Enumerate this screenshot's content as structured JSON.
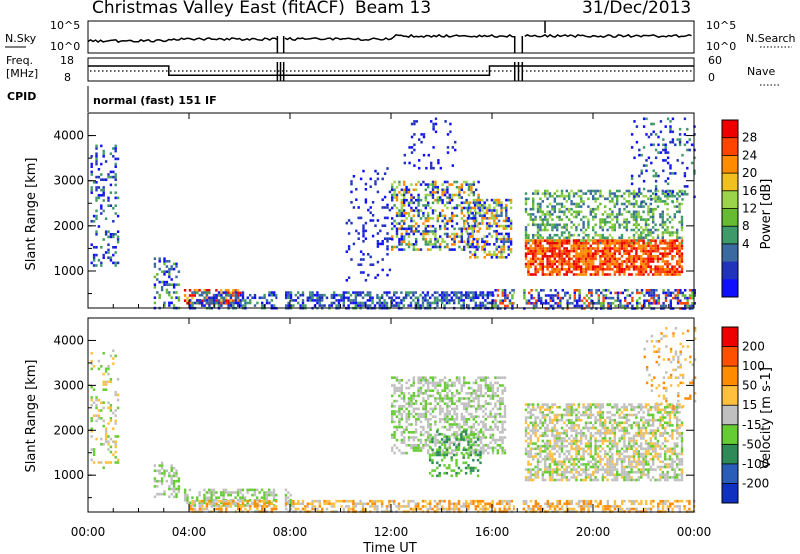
{
  "chart_data": {
    "type": "heatmap",
    "header": {
      "title": "Christmas Valley East (fitACF)",
      "beam": "Beam 13",
      "date": "31/Dec/2013",
      "cpid_label": "CPID",
      "cpid_text": "normal (fast) 151 IF"
    },
    "top_panels": {
      "nsky": {
        "label": "N.Sky",
        "right_label": "N.Search",
        "left_ticks": [
          "10^5",
          "10^0"
        ],
        "right_ticks": [
          "10^5",
          "10^0"
        ]
      },
      "freq": {
        "label_lines": [
          "Freq.",
          "[MHz]"
        ],
        "right_label": "Nave",
        "left_ticks": [
          "18",
          "8"
        ],
        "right_ticks": [
          "60",
          "0"
        ],
        "freq_steps": [
          {
            "t": 0.0,
            "f": 14.5
          },
          {
            "t": 3.2,
            "f": 10.5
          },
          {
            "t": 15.9,
            "f": 14.5
          },
          {
            "t": 24.0,
            "f": 14.5
          }
        ]
      }
    },
    "x_axis": {
      "label": "Time UT",
      "range_hours": [
        0,
        24
      ],
      "tick_labels": [
        "00:00",
        "04:00",
        "08:00",
        "12:00",
        "16:00",
        "20:00",
        "00:00"
      ]
    },
    "y_axis": {
      "label": "Slant Range [km]",
      "range_km": [
        180,
        4500
      ],
      "tick_labels": [
        "1000",
        "2000",
        "3000",
        "4000"
      ],
      "tick_values": [
        1000,
        2000,
        3000,
        4000
      ]
    },
    "data_gaps_hours": [
      [
        7.5,
        7.75
      ],
      [
        16.9,
        17.2
      ]
    ],
    "power_panel": {
      "colorbar_label": "Power [dB]",
      "colorbar_ticks": [
        "28",
        "24",
        "20",
        "16",
        "12",
        "8",
        "4"
      ],
      "colors": [
        "#1010ff",
        "#2233bb",
        "#3a6aa0",
        "#3f9a6a",
        "#66bb33",
        "#9bd34a",
        "#f0c020",
        "#ff8c00",
        "#ff4500",
        "#ee0000"
      ],
      "regions": [
        {
          "t0": 0.1,
          "t1": 1.2,
          "r0": 1100,
          "r1": 3800,
          "density": 0.25,
          "levels": [
            0,
            1,
            3
          ]
        },
        {
          "t0": 2.6,
          "t1": 3.6,
          "r0": 200,
          "r1": 1300,
          "density": 0.35,
          "levels": [
            0,
            2,
            4
          ]
        },
        {
          "t0": 3.8,
          "t1": 6.0,
          "r0": 300,
          "r1": 600,
          "density": 0.6,
          "levels": [
            6,
            7,
            8,
            9
          ]
        },
        {
          "t0": 4.0,
          "t1": 16.0,
          "r0": 190,
          "r1": 550,
          "density": 0.55,
          "levels": [
            0,
            1,
            2,
            3
          ]
        },
        {
          "t0": 10.2,
          "t1": 12.0,
          "r0": 800,
          "r1": 3300,
          "density": 0.12,
          "levels": [
            0,
            1
          ]
        },
        {
          "t0": 12.0,
          "t1": 15.5,
          "r0": 1500,
          "r1": 3000,
          "density": 0.45,
          "levels": [
            0,
            1,
            3,
            5,
            7
          ]
        },
        {
          "t0": 12.5,
          "t1": 14.5,
          "r0": 3300,
          "r1": 4400,
          "density": 0.12,
          "levels": [
            0,
            1
          ]
        },
        {
          "t0": 15.0,
          "t1": 16.8,
          "r0": 1300,
          "r1": 2600,
          "density": 0.5,
          "levels": [
            0,
            2,
            5,
            7
          ]
        },
        {
          "t0": 17.3,
          "t1": 23.5,
          "r0": 1600,
          "r1": 2800,
          "density": 0.45,
          "levels": [
            2,
            3,
            4,
            5
          ]
        },
        {
          "t0": 17.3,
          "t1": 23.5,
          "r0": 900,
          "r1": 1700,
          "density": 0.75,
          "levels": [
            7,
            8,
            9
          ]
        },
        {
          "t0": 16.0,
          "t1": 24.0,
          "r0": 190,
          "r1": 600,
          "density": 0.5,
          "levels": [
            0,
            1,
            2,
            4,
            8
          ]
        },
        {
          "t0": 21.5,
          "t1": 24.0,
          "r0": 2500,
          "r1": 4400,
          "density": 0.15,
          "levels": [
            0,
            1,
            3
          ]
        }
      ]
    },
    "velocity_panel": {
      "colorbar_label": "Velocity [m s-1]",
      "colorbar_ticks": [
        "200",
        "100",
        "50",
        "15",
        "-15",
        "-50",
        "-100",
        "-200"
      ],
      "colors": [
        "#1030c0",
        "#2a5db8",
        "#2e8b57",
        "#66cc33",
        "#c0c0c0",
        "#ffc040",
        "#ff8c00",
        "#ff5000",
        "#ee0000"
      ],
      "regions": [
        {
          "t0": 0.1,
          "t1": 1.2,
          "r0": 1100,
          "r1": 3800,
          "density": 0.2,
          "levels": [
            4,
            5,
            3
          ]
        },
        {
          "t0": 2.6,
          "t1": 3.6,
          "r0": 500,
          "r1": 1300,
          "density": 0.45,
          "levels": [
            4,
            3
          ]
        },
        {
          "t0": 3.8,
          "t1": 8.0,
          "r0": 300,
          "r1": 700,
          "density": 0.55,
          "levels": [
            3,
            4
          ]
        },
        {
          "t0": 4.0,
          "t1": 24.0,
          "r0": 190,
          "r1": 450,
          "density": 0.55,
          "levels": [
            5,
            6,
            4
          ]
        },
        {
          "t0": 12.0,
          "t1": 16.5,
          "r0": 1500,
          "r1": 3200,
          "density": 0.5,
          "levels": [
            4,
            4,
            3
          ]
        },
        {
          "t0": 13.5,
          "t1": 15.5,
          "r0": 1000,
          "r1": 2000,
          "density": 0.35,
          "levels": [
            3,
            2
          ]
        },
        {
          "t0": 17.3,
          "t1": 23.5,
          "r0": 900,
          "r1": 2600,
          "density": 0.6,
          "levels": [
            4,
            4,
            5,
            3
          ]
        },
        {
          "t0": 22.0,
          "t1": 24.0,
          "r0": 2500,
          "r1": 4300,
          "density": 0.15,
          "levels": [
            5,
            6,
            4
          ]
        }
      ]
    }
  }
}
